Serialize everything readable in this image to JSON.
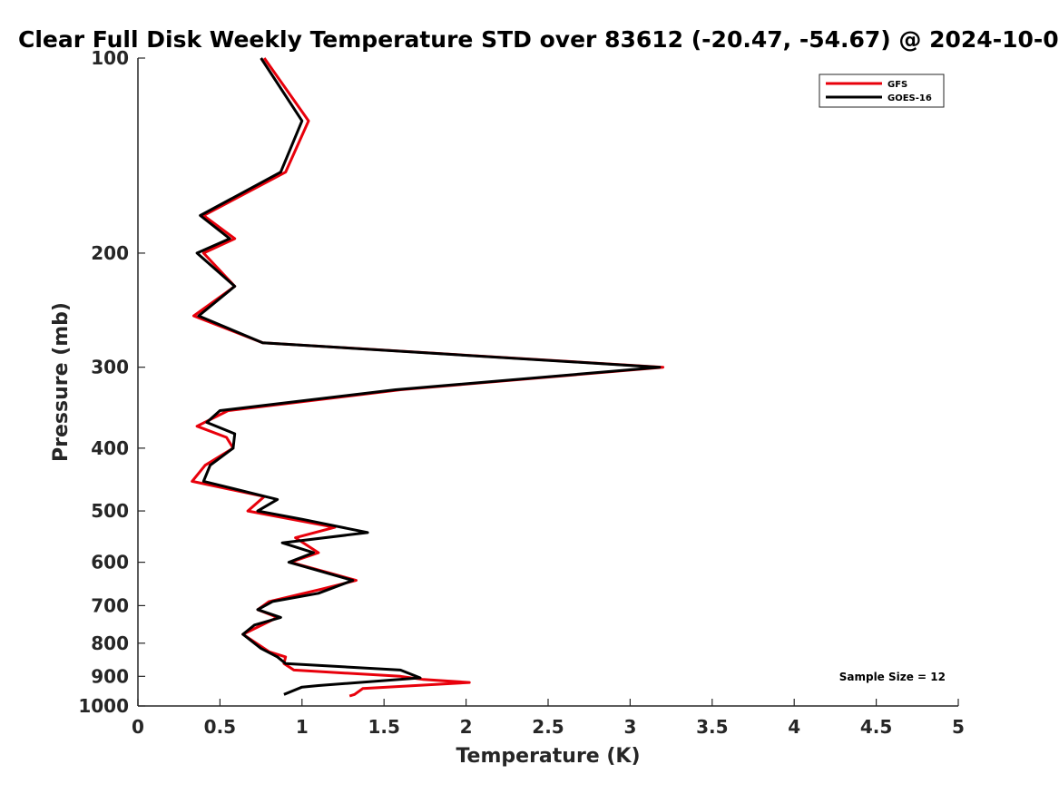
{
  "chart_data": {
    "type": "line",
    "title": "Clear Full Disk Weekly Temperature STD over 83612 (-20.47, -54.67) @ 2024-10-0",
    "xlabel": "Temperature (K)",
    "ylabel": "Pressure (mb)",
    "xlim": [
      0,
      5
    ],
    "ylim": [
      100,
      1000
    ],
    "yscale": "log",
    "yreversed": true,
    "grid": false,
    "legend_position": "top-right",
    "x_ticks": [
      0,
      0.5,
      1,
      1.5,
      2,
      2.5,
      3,
      3.5,
      4,
      4.5,
      5
    ],
    "x_tick_labels": [
      "0",
      "0.5",
      "1",
      "1.5",
      "2",
      "2.5",
      "3",
      "3.5",
      "4",
      "4.5",
      "5"
    ],
    "y_ticks": [
      100,
      200,
      300,
      400,
      500,
      600,
      700,
      800,
      900,
      1000
    ],
    "y_tick_labels": [
      "100",
      "200",
      "300",
      "400",
      "500",
      "600",
      "700",
      "800",
      "900",
      "1000"
    ],
    "annotation": "Sample Size = 12",
    "series": [
      {
        "name": "GFS",
        "color": "#e8000b",
        "points": [
          [
            0.77,
            100
          ],
          [
            1.04,
            125
          ],
          [
            0.9,
            150
          ],
          [
            0.4,
            175
          ],
          [
            0.59,
            190
          ],
          [
            0.4,
            200
          ],
          [
            0.59,
            225
          ],
          [
            0.34,
            250
          ],
          [
            0.76,
            275
          ],
          [
            3.2,
            300
          ],
          [
            1.6,
            325
          ],
          [
            0.55,
            350
          ],
          [
            0.36,
            370
          ],
          [
            0.54,
            385
          ],
          [
            0.58,
            400
          ],
          [
            0.41,
            425
          ],
          [
            0.33,
            450
          ],
          [
            0.77,
            475
          ],
          [
            0.67,
            500
          ],
          [
            1.2,
            530
          ],
          [
            0.96,
            550
          ],
          [
            1.1,
            580
          ],
          [
            0.93,
            600
          ],
          [
            1.33,
            640
          ],
          [
            1.12,
            660
          ],
          [
            0.8,
            690
          ],
          [
            0.73,
            710
          ],
          [
            0.85,
            730
          ],
          [
            0.64,
            775
          ],
          [
            0.8,
            825
          ],
          [
            0.9,
            840
          ],
          [
            0.89,
            860
          ],
          [
            0.95,
            880
          ],
          [
            1.6,
            900
          ],
          [
            1.74,
            910
          ],
          [
            2.02,
            920
          ],
          [
            1.37,
            940
          ],
          [
            1.32,
            960
          ],
          [
            1.29,
            965
          ]
        ]
      },
      {
        "name": "GOES-16",
        "color": "#000000",
        "points": [
          [
            0.75,
            100
          ],
          [
            1.0,
            125
          ],
          [
            0.87,
            150
          ],
          [
            0.38,
            175
          ],
          [
            0.56,
            190
          ],
          [
            0.36,
            200
          ],
          [
            0.59,
            225
          ],
          [
            0.37,
            250
          ],
          [
            0.76,
            275
          ],
          [
            3.18,
            300
          ],
          [
            1.57,
            325
          ],
          [
            0.5,
            350
          ],
          [
            0.42,
            365
          ],
          [
            0.59,
            380
          ],
          [
            0.58,
            400
          ],
          [
            0.44,
            425
          ],
          [
            0.4,
            450
          ],
          [
            0.85,
            480
          ],
          [
            0.73,
            500
          ],
          [
            1.0,
            515
          ],
          [
            1.4,
            540
          ],
          [
            0.88,
            560
          ],
          [
            1.07,
            580
          ],
          [
            0.92,
            600
          ],
          [
            1.31,
            640
          ],
          [
            1.1,
            670
          ],
          [
            0.82,
            690
          ],
          [
            0.73,
            710
          ],
          [
            0.87,
            730
          ],
          [
            0.71,
            750
          ],
          [
            0.64,
            775
          ],
          [
            0.75,
            815
          ],
          [
            0.85,
            840
          ],
          [
            0.9,
            860
          ],
          [
            1.6,
            880
          ],
          [
            1.72,
            905
          ],
          [
            1.1,
            930
          ],
          [
            1.0,
            935
          ],
          [
            0.89,
            960
          ]
        ]
      }
    ]
  }
}
